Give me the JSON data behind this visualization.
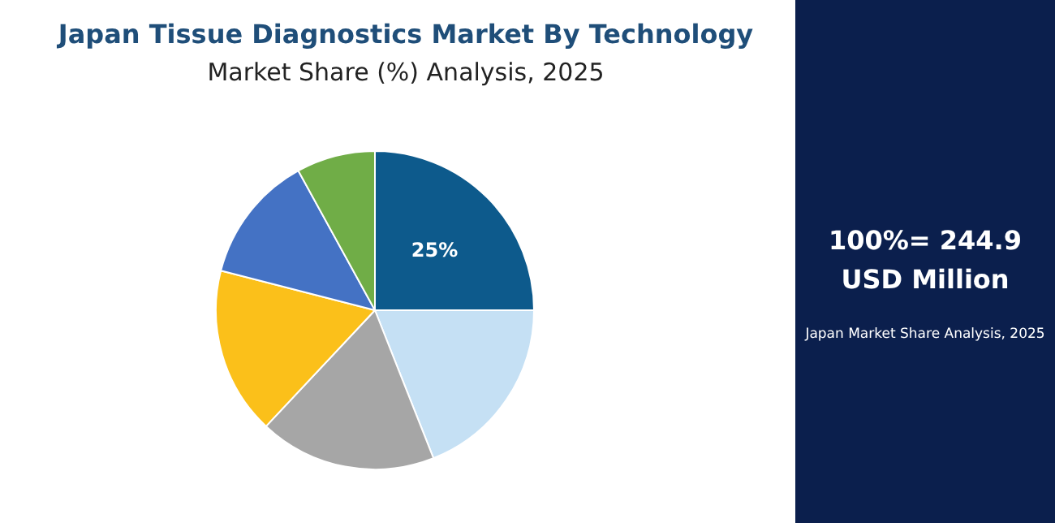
{
  "chart_data": {
    "type": "pie",
    "title": "Japan Tissue Diagnostics Market By Technology",
    "subtitle": "Market Share (%) Analysis, 2025",
    "categories": [
      null,
      null,
      null,
      null,
      null,
      null
    ],
    "values": [
      25,
      19,
      18,
      17,
      13,
      8
    ],
    "colors": [
      "#0d5a8c",
      "#c5e0f4",
      "#a6a6a6",
      "#fbc01a",
      "#4472c4",
      "#70ad47"
    ],
    "value_labels": [
      "25%",
      null,
      null,
      null,
      null,
      null
    ],
    "annotations": [
      "100%= 244.9",
      "USD Million",
      "Japan Market Share Analysis, 2025"
    ]
  }
}
